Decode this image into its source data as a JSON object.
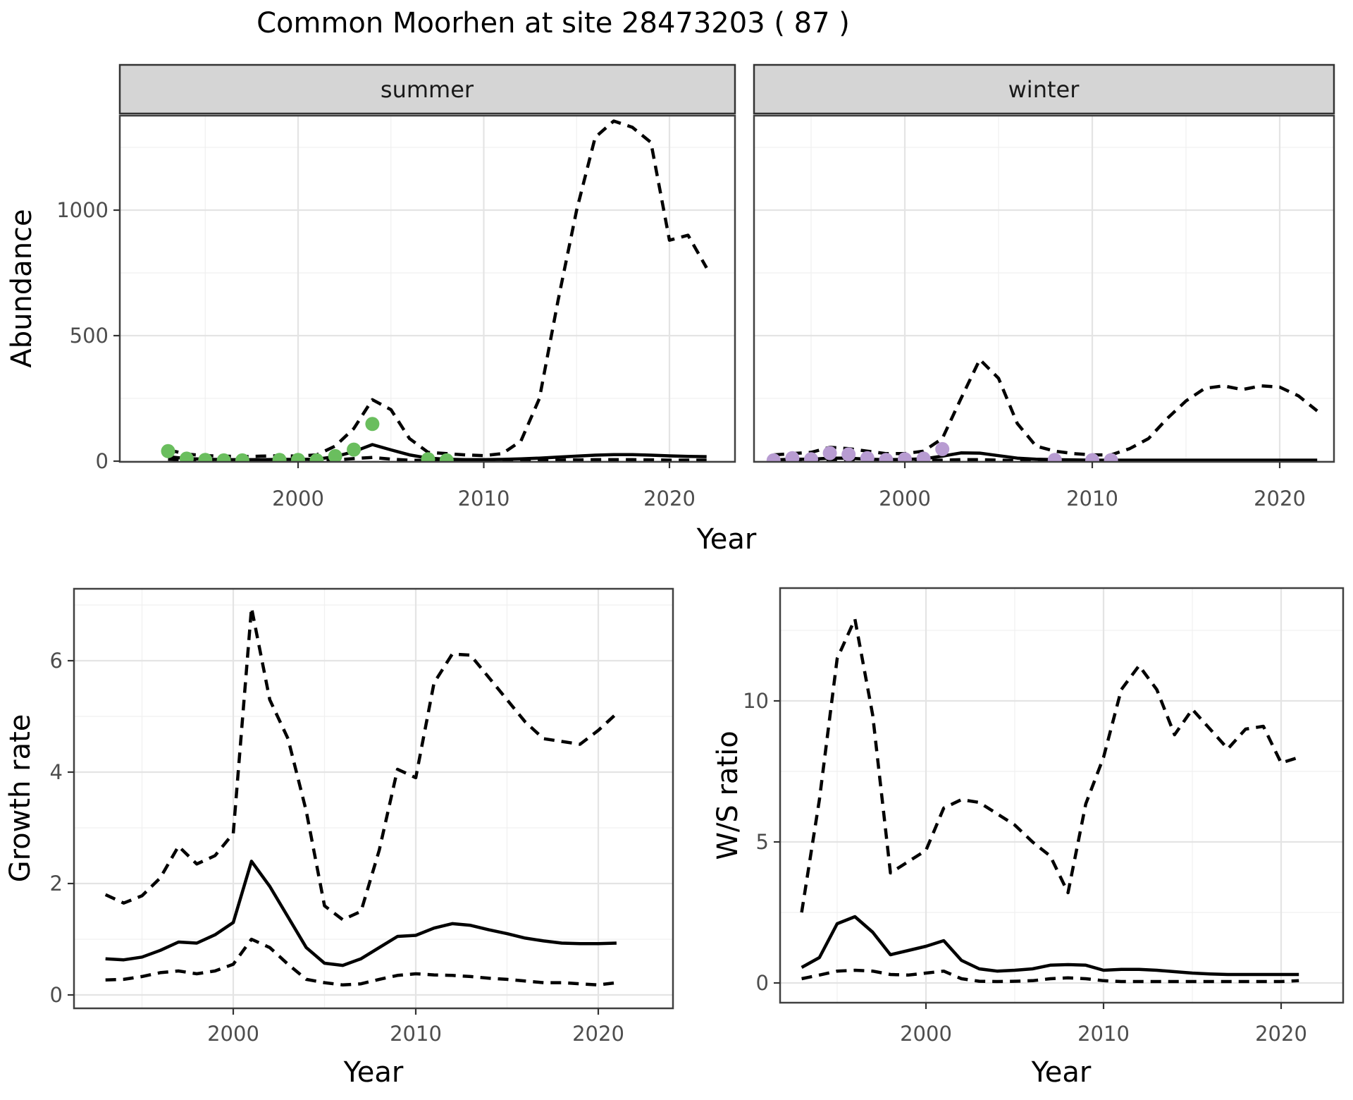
{
  "title": "Common Moorhen at site 28473203 ( 87 )",
  "colors": {
    "summer_point": "#6abe5e",
    "winter_point": "#b89cd2",
    "line": "#000000",
    "strip_bg": "#d5d5d5",
    "strip_border": "#333333",
    "panel_border": "#404040",
    "grid_major": "#e4e4e4",
    "grid_minor": "#f0f0f0",
    "tick_mark": "#333333"
  },
  "chart_data": [
    {
      "type": "line",
      "id": "abundance",
      "title": "",
      "ylabel": "Abundance",
      "xlabel": "Year",
      "x_ticks": [
        2000,
        2010,
        2020
      ],
      "y_ticks": [
        0,
        500,
        1000
      ],
      "xlim": [
        1990.5,
        2023.5
      ],
      "ylim": [
        0,
        1375
      ],
      "grid": true,
      "legend": "none",
      "series_styles": {
        "upper": "dashed",
        "median": "solid",
        "lower": "dashed"
      },
      "facets": [
        {
          "label": "summer",
          "point_color": "#6abe5e",
          "years": [
            1993,
            1994,
            1995,
            1996,
            1997,
            1998,
            1999,
            2000,
            2001,
            2002,
            2003,
            2004,
            2005,
            2006,
            2007,
            2008,
            2009,
            2010,
            2011,
            2012,
            2013,
            2014,
            2015,
            2016,
            2017,
            2018,
            2019,
            2020,
            2021,
            2022
          ],
          "upper": [
            45,
            28,
            22,
            20,
            18,
            20,
            22,
            20,
            25,
            60,
            130,
            245,
            205,
            90,
            35,
            30,
            25,
            22,
            30,
            80,
            250,
            640,
            1000,
            1290,
            1355,
            1330,
            1270,
            880,
            900,
            770
          ],
          "median": [
            18,
            10,
            8,
            6,
            6,
            6,
            7,
            7,
            8,
            18,
            38,
            66,
            45,
            25,
            12,
            8,
            6,
            6,
            7,
            9,
            12,
            16,
            20,
            24,
            26,
            26,
            24,
            21,
            19,
            18
          ],
          "lower": [
            8,
            3,
            2,
            2,
            2,
            2,
            2,
            2,
            3,
            5,
            10,
            15,
            8,
            4,
            2,
            2,
            2,
            2,
            2,
            2,
            3,
            4,
            5,
            6,
            6,
            6,
            5,
            4,
            4,
            4
          ],
          "points": {
            "years": [
              1993,
              1994,
              1995,
              1996,
              1997,
              1999,
              2000,
              2001,
              2002,
              2003,
              2004,
              2007,
              2008
            ],
            "values": [
              40,
              10,
              5,
              3,
              3,
              5,
              5,
              3,
              20,
              46,
              148,
              8,
              3
            ]
          }
        },
        {
          "label": "winter",
          "point_color": "#b89cd2",
          "years": [
            1993,
            1994,
            1995,
            1996,
            1997,
            1998,
            1999,
            2000,
            2001,
            2002,
            2003,
            2004,
            2005,
            2006,
            2007,
            2008,
            2009,
            2010,
            2011,
            2012,
            2013,
            2014,
            2015,
            2016,
            2017,
            2018,
            2019,
            2020,
            2021,
            2022
          ],
          "upper": [
            25,
            30,
            35,
            55,
            50,
            40,
            30,
            30,
            40,
            90,
            250,
            405,
            330,
            150,
            60,
            40,
            30,
            25,
            25,
            50,
            90,
            170,
            240,
            290,
            300,
            285,
            300,
            295,
            260,
            200
          ],
          "median": [
            5,
            8,
            8,
            12,
            12,
            8,
            6,
            7,
            9,
            20,
            33,
            32,
            22,
            12,
            8,
            6,
            5,
            4,
            4,
            4,
            4,
            4,
            4,
            4,
            4,
            4,
            4,
            4,
            4,
            4
          ],
          "lower": [
            2,
            2,
            2,
            3,
            3,
            2,
            2,
            2,
            2,
            4,
            6,
            6,
            4,
            2,
            1,
            1,
            1,
            1,
            1,
            1,
            1,
            1,
            1,
            1,
            1,
            1,
            1,
            1,
            1,
            1
          ],
          "points": {
            "years": [
              1993,
              1994,
              1995,
              1996,
              1997,
              1998,
              1999,
              2000,
              2001,
              2002,
              2008,
              2010,
              2011
            ],
            "values": [
              3,
              12,
              8,
              32,
              27,
              12,
              5,
              8,
              10,
              48,
              5,
              4,
              4
            ]
          }
        }
      ]
    },
    {
      "type": "line",
      "id": "growth_rate",
      "title": "",
      "ylabel": "Growth rate",
      "xlabel": "Year",
      "x_ticks": [
        2000,
        2010,
        2020
      ],
      "y_ticks": [
        0,
        2,
        4,
        6
      ],
      "xlim": [
        1991.3,
        2024.1
      ],
      "ylim": [
        0,
        7.3
      ],
      "grid": true,
      "legend": "none",
      "series_styles": {
        "upper": "dashed",
        "median": "solid",
        "lower": "dashed"
      },
      "years": [
        1993,
        1994,
        1995,
        1996,
        1997,
        1998,
        1999,
        2000,
        2001,
        2002,
        2003,
        2004,
        2005,
        2006,
        2007,
        2008,
        2009,
        2010,
        2011,
        2012,
        2013,
        2014,
        2015,
        2016,
        2017,
        2018,
        2019,
        2020,
        2021
      ],
      "upper": [
        1.8,
        1.65,
        1.78,
        2.1,
        2.67,
        2.35,
        2.5,
        2.9,
        6.95,
        5.3,
        4.6,
        3.3,
        1.6,
        1.35,
        1.5,
        2.6,
        4.05,
        3.9,
        5.6,
        6.12,
        6.1,
        5.7,
        5.3,
        4.9,
        4.6,
        4.55,
        4.5,
        4.75,
        5.05
      ],
      "median": [
        0.65,
        0.63,
        0.68,
        0.8,
        0.95,
        0.93,
        1.08,
        1.3,
        2.4,
        1.95,
        1.4,
        0.85,
        0.57,
        0.53,
        0.65,
        0.85,
        1.05,
        1.07,
        1.2,
        1.28,
        1.25,
        1.17,
        1.1,
        1.02,
        0.97,
        0.93,
        0.92,
        0.92,
        0.93
      ],
      "lower": [
        0.27,
        0.28,
        0.33,
        0.4,
        0.43,
        0.38,
        0.43,
        0.55,
        1.0,
        0.85,
        0.55,
        0.28,
        0.22,
        0.18,
        0.2,
        0.28,
        0.35,
        0.38,
        0.36,
        0.35,
        0.33,
        0.3,
        0.28,
        0.25,
        0.22,
        0.22,
        0.2,
        0.18,
        0.22
      ]
    },
    {
      "type": "line",
      "id": "ws_ratio",
      "title": "",
      "ylabel": "W/S ratio",
      "xlabel": "Year",
      "x_ticks": [
        2000,
        2010,
        2020
      ],
      "y_ticks": [
        0,
        5,
        10
      ],
      "xlim": [
        1991.8,
        2023.5
      ],
      "ylim": [
        0,
        14
      ],
      "grid": true,
      "legend": "none",
      "series_styles": {
        "upper": "dashed",
        "median": "solid",
        "lower": "dashed"
      },
      "years": [
        1993,
        1994,
        1995,
        1996,
        1997,
        1998,
        1999,
        2000,
        2001,
        2002,
        2003,
        2004,
        2005,
        2006,
        2007,
        2008,
        2009,
        2010,
        2011,
        2012,
        2013,
        2014,
        2015,
        2016,
        2017,
        2018,
        2019,
        2020,
        2021
      ],
      "upper": [
        2.5,
        6.5,
        11.5,
        12.9,
        9.5,
        3.9,
        4.3,
        4.7,
        6.2,
        6.5,
        6.4,
        6.0,
        5.6,
        5.0,
        4.5,
        3.2,
        6.35,
        8.0,
        10.4,
        11.25,
        10.4,
        8.8,
        9.7,
        9.0,
        8.3,
        9.0,
        9.1,
        7.8,
        8.0
      ],
      "median": [
        0.55,
        0.9,
        2.1,
        2.35,
        1.8,
        1.0,
        1.15,
        1.3,
        1.5,
        0.8,
        0.5,
        0.42,
        0.45,
        0.5,
        0.63,
        0.65,
        0.63,
        0.45,
        0.48,
        0.48,
        0.45,
        0.4,
        0.35,
        0.32,
        0.3,
        0.3,
        0.3,
        0.3,
        0.3
      ],
      "lower": [
        0.15,
        0.28,
        0.42,
        0.45,
        0.42,
        0.3,
        0.28,
        0.35,
        0.42,
        0.15,
        0.06,
        0.05,
        0.06,
        0.08,
        0.15,
        0.18,
        0.15,
        0.08,
        0.05,
        0.05,
        0.05,
        0.05,
        0.05,
        0.05,
        0.05,
        0.05,
        0.05,
        0.05,
        0.08
      ]
    }
  ]
}
